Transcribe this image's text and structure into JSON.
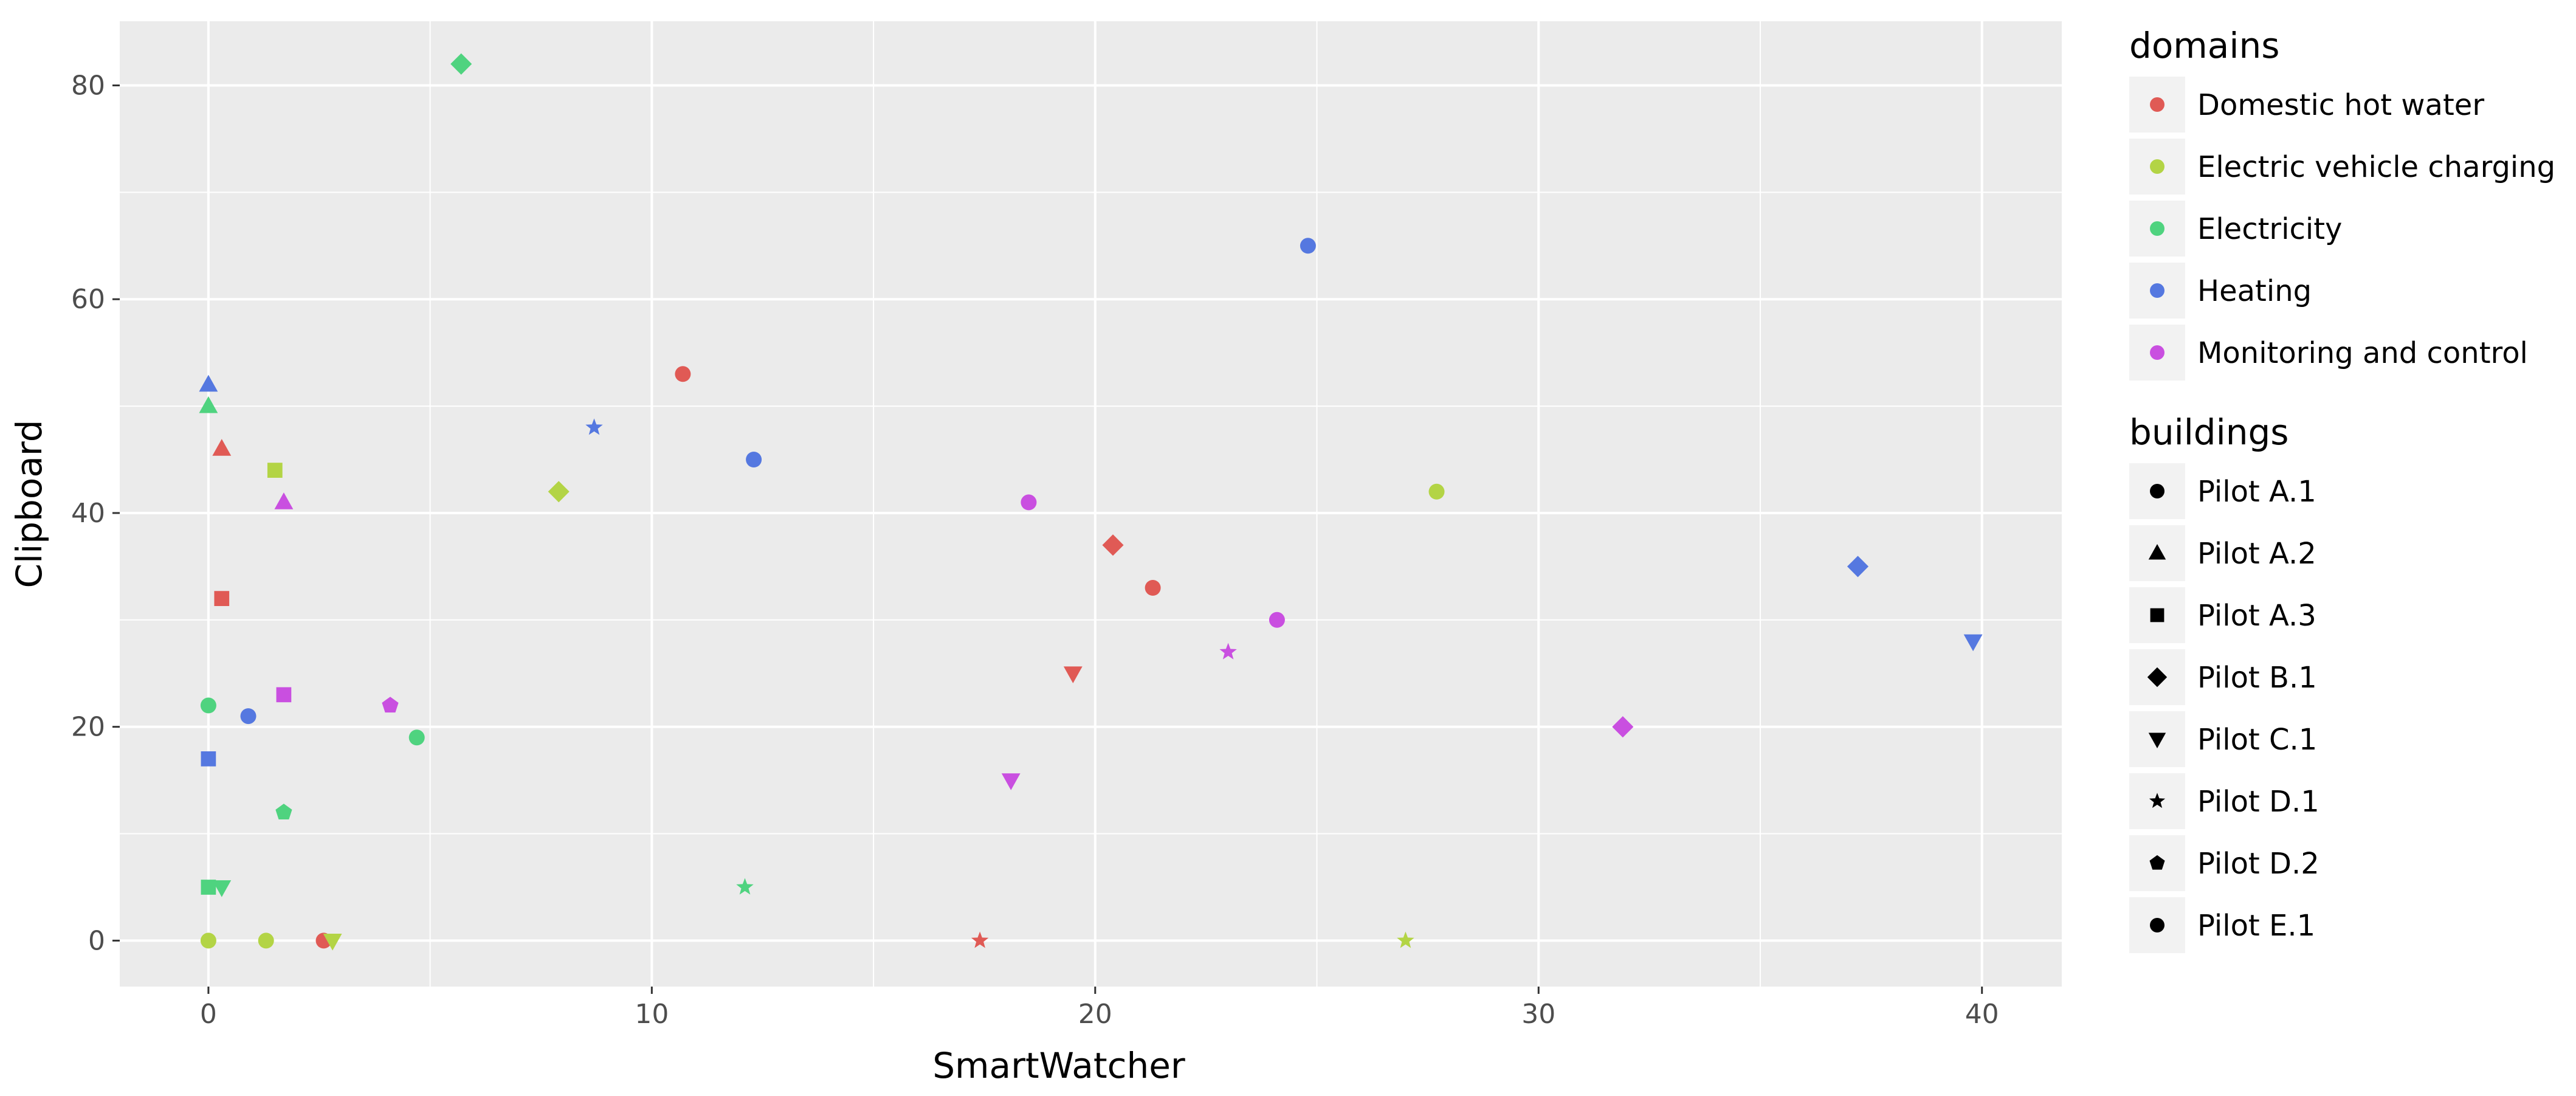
{
  "chart_data": {
    "type": "scatter",
    "xlabel": "SmartWatcher",
    "ylabel": "Clipboard",
    "xlim": [
      -2,
      41.8
    ],
    "ylim": [
      -4.3,
      86
    ],
    "x_ticks": [
      0,
      10,
      20,
      30,
      40
    ],
    "y_ticks": [
      0,
      20,
      40,
      60,
      80
    ],
    "grid": true,
    "legend_position": "right",
    "color_legend": {
      "title": "domains",
      "entries": [
        {
          "label": "Domestic hot water",
          "color": "#e05a55"
        },
        {
          "label": "Electric vehicle charging",
          "color": "#b3d445"
        },
        {
          "label": "Electricity",
          "color": "#4fd37f"
        },
        {
          "label": "Heating",
          "color": "#5578e0"
        },
        {
          "label": "Monitoring and control",
          "color": "#c94fe0"
        }
      ]
    },
    "shape_legend": {
      "title": "buildings",
      "entries": [
        {
          "label": "Pilot A.1",
          "shape": "circle"
        },
        {
          "label": "Pilot A.2",
          "shape": "triangle-up"
        },
        {
          "label": "Pilot A.3",
          "shape": "square"
        },
        {
          "label": "Pilot B.1",
          "shape": "diamond"
        },
        {
          "label": "Pilot C.1",
          "shape": "triangle-down"
        },
        {
          "label": "Pilot D.1",
          "shape": "star"
        },
        {
          "label": "Pilot D.2",
          "shape": "pentagon"
        },
        {
          "label": "Pilot E.1",
          "shape": "circle"
        }
      ]
    },
    "points": [
      {
        "x": 10.7,
        "y": 53,
        "domain": "Domestic hot water",
        "building": "Pilot A.1"
      },
      {
        "x": 21.3,
        "y": 33,
        "domain": "Domestic hot water",
        "building": "Pilot A.1"
      },
      {
        "x": 0.3,
        "y": 46,
        "domain": "Domestic hot water",
        "building": "Pilot A.2"
      },
      {
        "x": 0.3,
        "y": 32,
        "domain": "Domestic hot water",
        "building": "Pilot A.3"
      },
      {
        "x": 20.4,
        "y": 37,
        "domain": "Domestic hot water",
        "building": "Pilot B.1"
      },
      {
        "x": 19.5,
        "y": 25,
        "domain": "Domestic hot water",
        "building": "Pilot C.1"
      },
      {
        "x": 17.4,
        "y": 0,
        "domain": "Domestic hot water",
        "building": "Pilot D.1"
      },
      {
        "x": 2.6,
        "y": 0,
        "domain": "Domestic hot water",
        "building": "Pilot A.1"
      },
      {
        "x": 0,
        "y": 0,
        "domain": "Electric vehicle charging",
        "building": "Pilot A.1"
      },
      {
        "x": 1.3,
        "y": 0,
        "domain": "Electric vehicle charging",
        "building": "Pilot A.1"
      },
      {
        "x": 27.7,
        "y": 42,
        "domain": "Electric vehicle charging",
        "building": "Pilot A.1"
      },
      {
        "x": 1.5,
        "y": 44,
        "domain": "Electric vehicle charging",
        "building": "Pilot A.3"
      },
      {
        "x": 7.9,
        "y": 42,
        "domain": "Electric vehicle charging",
        "building": "Pilot B.1"
      },
      {
        "x": 2.8,
        "y": 0,
        "domain": "Electric vehicle charging",
        "building": "Pilot C.1"
      },
      {
        "x": 27.0,
        "y": 0,
        "domain": "Electric vehicle charging",
        "building": "Pilot D.1"
      },
      {
        "x": 0,
        "y": 22,
        "domain": "Electricity",
        "building": "Pilot A.1"
      },
      {
        "x": 4.7,
        "y": 19,
        "domain": "Electricity",
        "building": "Pilot A.1"
      },
      {
        "x": 0,
        "y": 50,
        "domain": "Electricity",
        "building": "Pilot A.2"
      },
      {
        "x": 0,
        "y": 5,
        "domain": "Electricity",
        "building": "Pilot A.3"
      },
      {
        "x": 5.7,
        "y": 82,
        "domain": "Electricity",
        "building": "Pilot B.1"
      },
      {
        "x": 0.3,
        "y": 5,
        "domain": "Electricity",
        "building": "Pilot C.1"
      },
      {
        "x": 12.1,
        "y": 5,
        "domain": "Electricity",
        "building": "Pilot D.1"
      },
      {
        "x": 1.7,
        "y": 12,
        "domain": "Electricity",
        "building": "Pilot D.2"
      },
      {
        "x": 24.8,
        "y": 65,
        "domain": "Heating",
        "building": "Pilot A.1"
      },
      {
        "x": 12.3,
        "y": 45,
        "domain": "Heating",
        "building": "Pilot A.1"
      },
      {
        "x": 0.9,
        "y": 21,
        "domain": "Heating",
        "building": "Pilot A.1"
      },
      {
        "x": 0,
        "y": 52,
        "domain": "Heating",
        "building": "Pilot A.2"
      },
      {
        "x": 0,
        "y": 17,
        "domain": "Heating",
        "building": "Pilot A.3"
      },
      {
        "x": 37.2,
        "y": 35,
        "domain": "Heating",
        "building": "Pilot B.1"
      },
      {
        "x": 39.8,
        "y": 28,
        "domain": "Heating",
        "building": "Pilot C.1"
      },
      {
        "x": 8.7,
        "y": 48,
        "domain": "Heating",
        "building": "Pilot D.1"
      },
      {
        "x": 18.5,
        "y": 41,
        "domain": "Monitoring and control",
        "building": "Pilot A.1"
      },
      {
        "x": 24.1,
        "y": 30,
        "domain": "Monitoring and control",
        "building": "Pilot A.1"
      },
      {
        "x": 1.7,
        "y": 41,
        "domain": "Monitoring and control",
        "building": "Pilot A.2"
      },
      {
        "x": 1.7,
        "y": 23,
        "domain": "Monitoring and control",
        "building": "Pilot A.3"
      },
      {
        "x": 31.9,
        "y": 20,
        "domain": "Monitoring and control",
        "building": "Pilot B.1"
      },
      {
        "x": 18.1,
        "y": 15,
        "domain": "Monitoring and control",
        "building": "Pilot C.1"
      },
      {
        "x": 23.0,
        "y": 27,
        "domain": "Monitoring and control",
        "building": "Pilot D.1"
      },
      {
        "x": 4.1,
        "y": 22,
        "domain": "Monitoring and control",
        "building": "Pilot D.2"
      }
    ]
  }
}
